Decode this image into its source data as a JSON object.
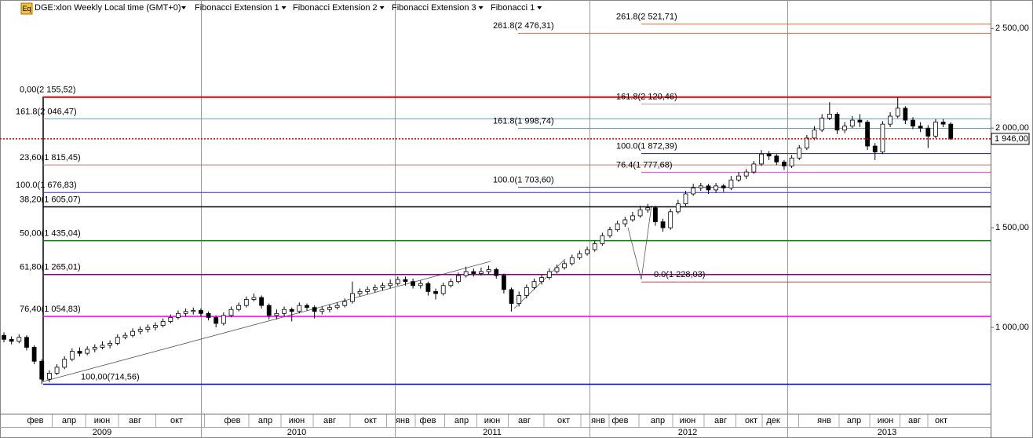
{
  "chart_data": {
    "type": "candlestick",
    "title": "DGE:xlon Weekly Local time (GMT+0)",
    "icon_label": "Eq",
    "studies": [
      "Fibonacci Extension 1",
      "Fibonacci Extension 2",
      "Fibonacci Extension 3",
      "Fibonacci 1"
    ],
    "up_color": "#ffffff",
    "down_color": "#000000",
    "ylim": [
      567,
      2643
    ],
    "yticks": [
      {
        "value": 2500,
        "label": "2 500,00"
      },
      {
        "value": 2000,
        "label": "2 000,00"
      },
      {
        "value": 1500,
        "label": "1 500,00"
      },
      {
        "value": 1000,
        "label": "1 000,00"
      }
    ],
    "last_price": {
      "value": 1946,
      "label": "1 946,00"
    },
    "month_labels": [
      "фев",
      "апр",
      "июн",
      "авг",
      "окт",
      "фев",
      "апр",
      "июн",
      "авг",
      "окт",
      "янв",
      "фев",
      "апр",
      "июн",
      "авг",
      "окт",
      "янв",
      "фев",
      "апр",
      "июн",
      "авг",
      "окт",
      "дек",
      "янв",
      "апр",
      "июн",
      "авг",
      "окт"
    ],
    "year_labels": [
      "2009",
      "2010",
      "2011",
      "2012",
      "2013"
    ],
    "fib_levels": [
      {
        "label": "0,00(2 155,52)",
        "value": 2155.52,
        "color": "#e00000"
      },
      {
        "label": "161.8(2 046,47)",
        "value": 2046.47,
        "color": "#6a9fae"
      },
      {
        "label": "23,60(1 815,45)",
        "value": 1815.45,
        "color": "#b87878"
      },
      {
        "label": "100.0(1 676,83)",
        "value": 1676.83,
        "color": "#3030c0"
      },
      {
        "label": "38,20(1 605,07)",
        "value": 1605.07,
        "color": "#000000"
      },
      {
        "label": "50,00(1 435,04)",
        "value": 1435.04,
        "color": "#008000"
      },
      {
        "label": "61,80(1 265,01)",
        "value": 1265.01,
        "color": "#800080"
      },
      {
        "label": "76,40(1 054,83)",
        "value": 1054.83,
        "color": "#ff00ff"
      },
      {
        "label": "100,00(714,56)",
        "value": 714.56,
        "color": "#0000e0"
      },
      {
        "label": "261.8(2 476,31)",
        "value": 2476.31,
        "color": "#c8703a"
      },
      {
        "label": "161.8(1 998,74)",
        "value": 1998.74,
        "color": "#6a9fae"
      },
      {
        "label": "100.0(1 703,60)",
        "value": 1703.6,
        "color": "#4040c0"
      },
      {
        "label": "261.8(2 521,71)",
        "value": 2521.71,
        "color": "#c8703a"
      },
      {
        "label": "161.8(2 120,46)",
        "value": 2120.46,
        "color": "#a0a0a0"
      },
      {
        "label": "100.0(1 872,39)",
        "value": 1872.39,
        "color": "#1a1a8c"
      },
      {
        "label": "76.4(1 777,68)",
        "value": 1777.68,
        "color": "#e040e0"
      },
      {
        "label": "0.0(1 228,03)",
        "value": 1228.03,
        "color": "#c04040"
      }
    ],
    "series": [
      {
        "name": "DGE:xlon",
        "open": [
          960,
          940,
          930,
          950,
          900,
          830,
          740,
          770,
          800,
          840,
          880,
          870,
          890,
          900,
          910,
          920,
          950,
          960,
          980,
          990,
          1000,
          1010,
          1030,
          1050,
          1070,
          1080,
          1085,
          1070,
          1050,
          1020,
          1060,
          1090,
          1110,
          1140,
          1150,
          1110,
          1060,
          1070,
          1090,
          1080,
          1110,
          1100,
          1080,
          1090,
          1100,
          1110,
          1130,
          1170,
          1180,
          1190,
          1200,
          1210,
          1220,
          1240,
          1230,
          1210,
          1220,
          1180,
          1170,
          1210,
          1230,
          1260,
          1280,
          1270,
          1280,
          1290,
          1260,
          1190,
          1120,
          1160,
          1200,
          1230,
          1250,
          1280,
          1300,
          1320,
          1350,
          1370,
          1390,
          1420,
          1460,
          1490,
          1520,
          1540,
          1560,
          1590,
          1600,
          1530,
          1500,
          1580,
          1620,
          1670,
          1700,
          1710,
          1690,
          1710,
          1700,
          1740,
          1760,
          1780,
          1820,
          1870,
          1860,
          1830,
          1810,
          1850,
          1900,
          1950,
          1990,
          2050,
          2070,
          1990,
          2010,
          2040,
          2030,
          1910,
          1880,
          2020,
          2060,
          2100,
          2040,
          2010,
          2000,
          1960,
          2030,
          2020
        ],
        "high": [
          975,
          955,
          965,
          960,
          910,
          840,
          785,
          815,
          855,
          895,
          900,
          905,
          915,
          930,
          935,
          965,
          975,
          995,
          1005,
          1015,
          1025,
          1045,
          1065,
          1085,
          1095,
          1100,
          1095,
          1080,
          1060,
          1075,
          1105,
          1125,
          1155,
          1170,
          1160,
          1120,
          1090,
          1105,
          1100,
          1125,
          1120,
          1110,
          1105,
          1115,
          1125,
          1145,
          1230,
          1195,
          1205,
          1215,
          1225,
          1240,
          1255,
          1255,
          1245,
          1235,
          1230,
          1195,
          1225,
          1245,
          1275,
          1305,
          1295,
          1300,
          1310,
          1300,
          1270,
          1200,
          1180,
          1215,
          1245,
          1265,
          1295,
          1315,
          1335,
          1365,
          1385,
          1405,
          1435,
          1475,
          1505,
          1535,
          1555,
          1580,
          1610,
          1620,
          1610,
          1545,
          1595,
          1640,
          1685,
          1720,
          1725,
          1720,
          1725,
          1720,
          1760,
          1780,
          1795,
          1835,
          1890,
          1885,
          1870,
          1840,
          1865,
          1915,
          1965,
          2010,
          2070,
          2130,
          2080,
          2030,
          2060,
          2070,
          2040,
          1925,
          2035,
          2080,
          2155,
          2110,
          2055,
          2030,
          2015,
          2045,
          2045,
          2030
        ],
        "low": [
          925,
          915,
          920,
          885,
          815,
          715,
          725,
          760,
          790,
          830,
          855,
          860,
          875,
          890,
          895,
          910,
          940,
          950,
          965,
          975,
          985,
          1000,
          1020,
          1040,
          1055,
          1065,
          1055,
          1035,
          1000,
          1010,
          1050,
          1080,
          1100,
          1130,
          1095,
          1040,
          1040,
          1055,
          1030,
          1070,
          1085,
          1045,
          1065,
          1075,
          1090,
          1100,
          1120,
          1155,
          1165,
          1175,
          1185,
          1195,
          1210,
          1210,
          1195,
          1195,
          1160,
          1140,
          1160,
          1200,
          1220,
          1250,
          1255,
          1260,
          1265,
          1245,
          1170,
          1080,
          1105,
          1145,
          1190,
          1215,
          1240,
          1270,
          1290,
          1310,
          1340,
          1360,
          1380,
          1410,
          1450,
          1480,
          1505,
          1530,
          1550,
          1575,
          1510,
          1480,
          1490,
          1570,
          1610,
          1660,
          1685,
          1670,
          1675,
          1680,
          1690,
          1730,
          1745,
          1770,
          1810,
          1840,
          1815,
          1790,
          1800,
          1840,
          1890,
          1940,
          1980,
          2040,
          1970,
          1975,
          2000,
          2005,
          1890,
          1840,
          1870,
          2005,
          2050,
          2020,
          1995,
          1980,
          1900,
          1950,
          2005,
          1940
        ],
        "close": [
          940,
          930,
          950,
          900,
          830,
          740,
          770,
          800,
          840,
          880,
          870,
          890,
          900,
          910,
          920,
          950,
          960,
          980,
          990,
          1000,
          1010,
          1030,
          1050,
          1070,
          1080,
          1085,
          1070,
          1050,
          1020,
          1060,
          1090,
          1110,
          1140,
          1150,
          1110,
          1060,
          1070,
          1090,
          1080,
          1110,
          1100,
          1080,
          1090,
          1100,
          1110,
          1130,
          1170,
          1180,
          1190,
          1200,
          1210,
          1220,
          1240,
          1230,
          1210,
          1220,
          1180,
          1170,
          1210,
          1230,
          1260,
          1280,
          1270,
          1280,
          1290,
          1260,
          1190,
          1120,
          1160,
          1200,
          1230,
          1250,
          1280,
          1300,
          1320,
          1350,
          1370,
          1390,
          1420,
          1460,
          1490,
          1520,
          1540,
          1560,
          1590,
          1600,
          1530,
          1500,
          1580,
          1620,
          1670,
          1700,
          1710,
          1690,
          1710,
          1700,
          1740,
          1760,
          1780,
          1820,
          1870,
          1860,
          1830,
          1810,
          1850,
          1900,
          1950,
          1990,
          2050,
          2070,
          1990,
          2010,
          2040,
          2030,
          1910,
          1880,
          2020,
          2060,
          2100,
          2040,
          2010,
          2000,
          1960,
          2030,
          2020,
          1946
        ]
      }
    ]
  }
}
